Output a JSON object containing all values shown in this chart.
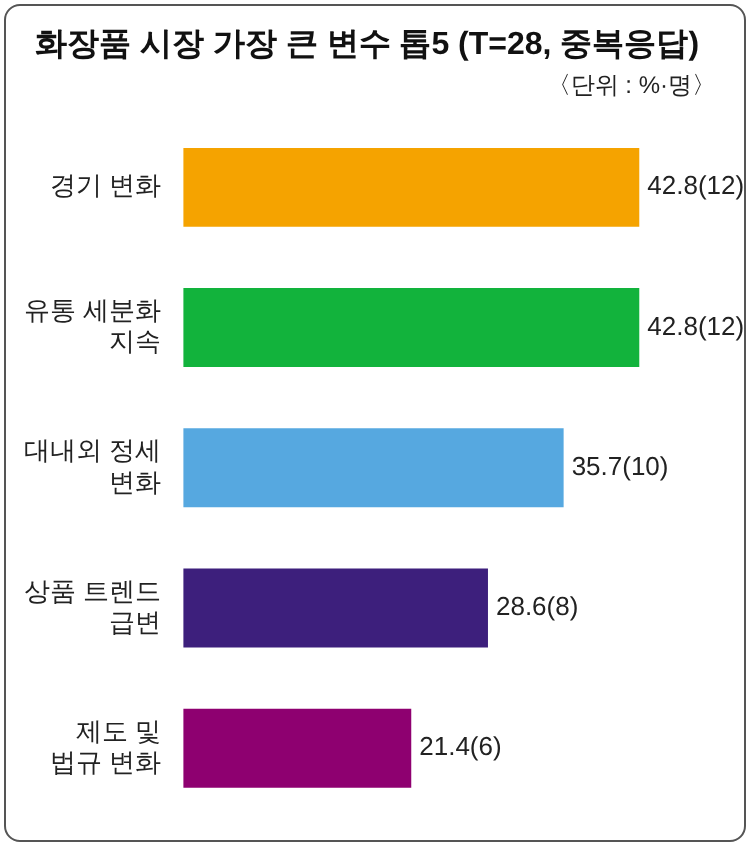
{
  "chart_data": {
    "type": "bar",
    "orientation": "horizontal",
    "title": "화장품 시장 가장 큰 변수 톱5 (T=28, 중복응답)",
    "subtitle": "〈단위 : %·명〉",
    "categories": [
      "경기 변화",
      "유통 세분화 지속",
      "대내외 정세 변화",
      "상품 트렌드 급변",
      "제도 및 법규 변화"
    ],
    "values": [
      42.8,
      42.8,
      35.7,
      28.6,
      21.4
    ],
    "colors": [
      "#f5a300",
      "#12b33c",
      "#56a8e0",
      "#3d1f7c",
      "#8e0070"
    ],
    "value_labels": [
      "42.8(12)",
      "42.8(12)",
      "35.7(10)",
      "28.6(8)",
      "21.4(6)"
    ],
    "legend": false
  }
}
